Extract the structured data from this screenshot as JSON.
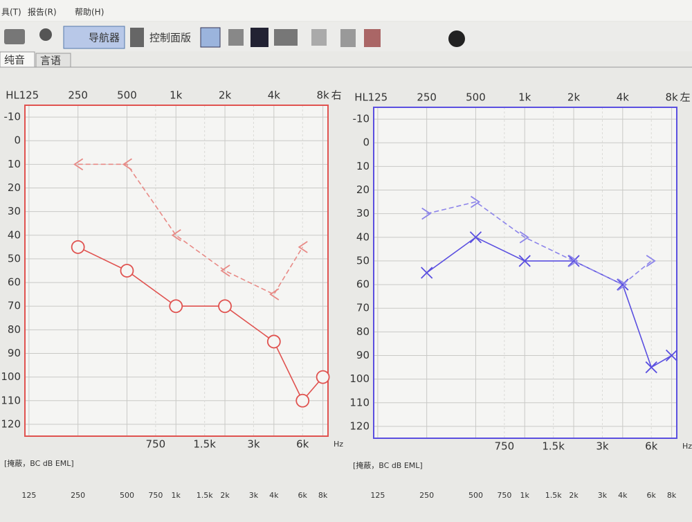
{
  "menu": [
    "具(T)",
    "报告(R)",
    "帮助(H)"
  ],
  "toolbar": [
    "导航器",
    "控制面版"
  ],
  "tabs": [
    "纯音",
    "言语"
  ],
  "chart_data": [
    {
      "type": "line",
      "ear": "右",
      "y_label": "HL",
      "x_unit": "Hz",
      "note": "[掩蔽，BC dB EML]",
      "log_x": true,
      "color": "#e0524f",
      "xlim": [
        118,
        8600
      ],
      "ylim": [
        -15,
        125
      ],
      "yticks": [
        -10,
        0,
        10,
        20,
        30,
        40,
        50,
        60,
        70,
        80,
        90,
        100,
        110,
        120
      ],
      "xticks": [
        {
          "value": 125,
          "label": "125"
        },
        {
          "value": 250,
          "label": "250"
        },
        {
          "value": 500,
          "label": "500"
        },
        {
          "value": 1000,
          "label": "1k"
        },
        {
          "value": 2000,
          "label": "2k"
        },
        {
          "value": 4000,
          "label": "4k"
        },
        {
          "value": 8000,
          "label": "8k"
        }
      ],
      "xticks_bottom": [
        {
          "value": 750,
          "label": "750"
        },
        {
          "value": 1500,
          "label": "1.5k"
        },
        {
          "value": 3000,
          "label": "3k"
        },
        {
          "value": 6000,
          "label": "6k"
        }
      ],
      "series": [
        {
          "marker": "circle",
          "dashed": false,
          "color": "#e0524f",
          "x": [
            250,
            500,
            1000,
            2000,
            4000,
            6000,
            8000
          ],
          "values": [
            45,
            55,
            70,
            70,
            85,
            110,
            100
          ]
        },
        {
          "marker": "lt",
          "dashed": true,
          "color": "#e88a86",
          "x": [
            250,
            500,
            1000,
            2000,
            4000,
            6000
          ],
          "values": [
            10,
            10,
            40,
            55,
            65,
            45
          ]
        }
      ],
      "freq_row": [
        "125",
        "250",
        "500",
        "750",
        "1k",
        "1.5k",
        "2k",
        "3k",
        "4k",
        "6k",
        "8k"
      ]
    },
    {
      "type": "line",
      "ear": "左",
      "y_label": "HL",
      "x_unit": "Hz",
      "note": "[掩蔽，BC dB EML]",
      "log_x": true,
      "color": "#5a4fe0",
      "xlim": [
        118,
        8600
      ],
      "ylim": [
        -15,
        125
      ],
      "yticks": [
        -10,
        0,
        10,
        20,
        30,
        40,
        50,
        60,
        70,
        80,
        90,
        100,
        110,
        120
      ],
      "xticks": [
        {
          "value": 125,
          "label": "125"
        },
        {
          "value": 250,
          "label": "250"
        },
        {
          "value": 500,
          "label": "500"
        },
        {
          "value": 1000,
          "label": "1k"
        },
        {
          "value": 2000,
          "label": "2k"
        },
        {
          "value": 4000,
          "label": "4k"
        },
        {
          "value": 8000,
          "label": "8k"
        }
      ],
      "xticks_bottom": [
        {
          "value": 750,
          "label": "750"
        },
        {
          "value": 1500,
          "label": "1.5k"
        },
        {
          "value": 3000,
          "label": "3k"
        },
        {
          "value": 6000,
          "label": "6k"
        }
      ],
      "series": [
        {
          "marker": "x",
          "dashed": false,
          "color": "#5a4fe0",
          "x": [
            250,
            500,
            1000,
            2000,
            4000,
            6000,
            8000
          ],
          "values": [
            55,
            40,
            50,
            50,
            60,
            95,
            90
          ]
        },
        {
          "marker": "gt",
          "dashed": true,
          "color": "#8c84ea",
          "x": [
            250,
            500,
            1000,
            2000,
            4000,
            6000
          ],
          "values": [
            30,
            25,
            40,
            50,
            60,
            50
          ]
        }
      ],
      "freq_row": [
        "125",
        "250",
        "500",
        "750",
        "1k",
        "1.5k",
        "2k",
        "3k",
        "4k",
        "6k",
        "8k"
      ]
    }
  ]
}
